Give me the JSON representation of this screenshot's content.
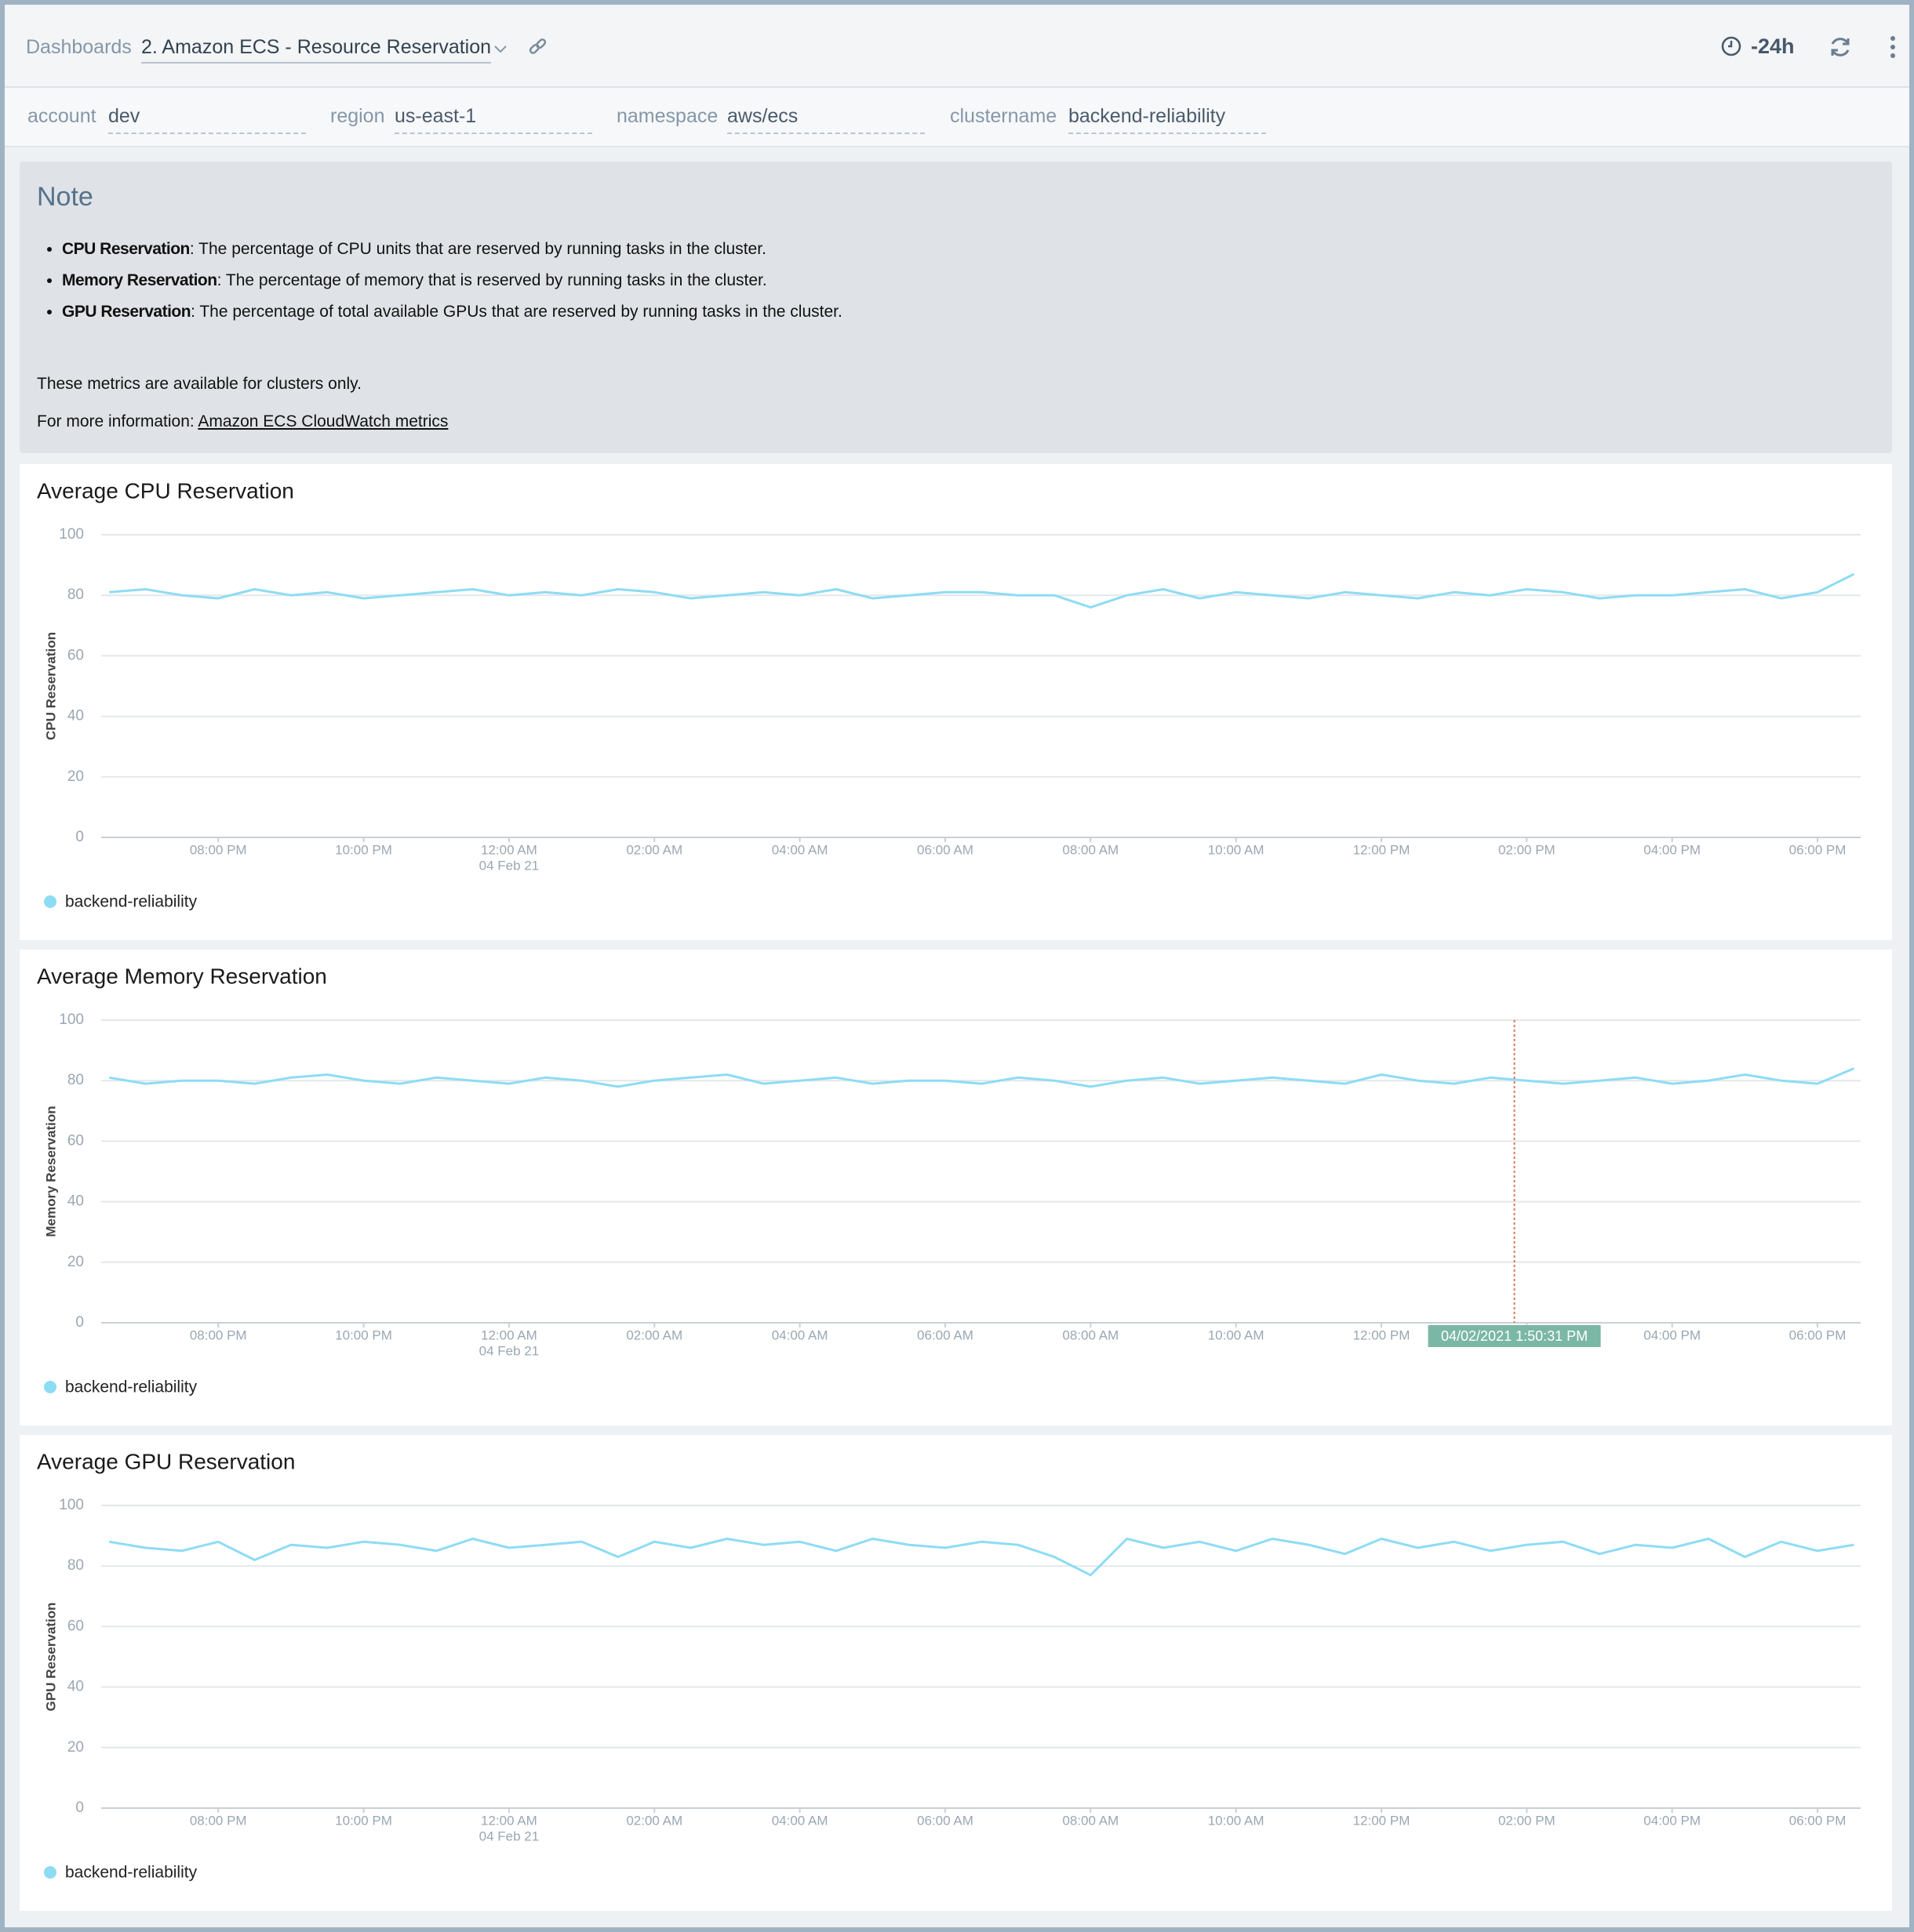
{
  "header": {
    "breadcrumb": "Dashboards",
    "dashboard": "2. Amazon ECS - Resource Reservation",
    "time_range": "-24h"
  },
  "filters": [
    {
      "label": "account",
      "value": "dev"
    },
    {
      "label": "region",
      "value": "us-east-1"
    },
    {
      "label": "namespace",
      "value": "aws/ecs"
    },
    {
      "label": "clustername",
      "value": "backend-reliability"
    }
  ],
  "note": {
    "title": "Note",
    "items": [
      {
        "term": "CPU Reservation",
        "text": ": The percentage of CPU units that are reserved by running tasks in the cluster."
      },
      {
        "term": "Memory Reservation",
        "text": ": The percentage of memory that is reserved by running tasks in the cluster."
      },
      {
        "term": "GPU Reservation",
        "text": ": The percentage of total available GPUs that are reserved by running tasks in the cluster."
      }
    ],
    "paragraph": "These metrics are available for clusters only.",
    "link_prefix": "For more information: ",
    "link_text": "Amazon ECS CloudWatch metrics"
  },
  "chart_data": [
    {
      "type": "line",
      "title": "Average CPU Reservation",
      "y_label": "CPU Reservation",
      "categories": [
        null,
        null,
        null,
        "08:00 PM",
        null,
        null,
        null,
        "10:00 PM",
        null,
        null,
        null,
        "12:00 AM",
        null,
        null,
        null,
        "02:00 AM",
        null,
        null,
        null,
        "04:00 AM",
        null,
        null,
        null,
        "06:00 AM",
        null,
        null,
        null,
        "08:00 AM",
        null,
        null,
        null,
        "10:00 AM",
        null,
        null,
        null,
        "12:00 PM",
        null,
        null,
        null,
        "02:00 PM",
        null,
        null,
        null,
        "04:00 PM",
        null,
        null,
        null,
        "06:00 PM",
        null
      ],
      "date_label": "04 Feb 21",
      "series": [
        {
          "name": "backend-reliability",
          "color": "#8ddcf4",
          "values": [
            81,
            82,
            80,
            79,
            82,
            80,
            81,
            79,
            80,
            81,
            82,
            80,
            81,
            80,
            82,
            81,
            79,
            80,
            81,
            80,
            82,
            79,
            80,
            81,
            81,
            80,
            80,
            76,
            80,
            82,
            79,
            81,
            80,
            79,
            81,
            80,
            79,
            81,
            80,
            82,
            81,
            79,
            80,
            80,
            81,
            82,
            79,
            81,
            87
          ]
        }
      ],
      "ylim": [
        0,
        100
      ],
      "yticks": [
        0,
        20,
        40,
        60,
        80,
        100
      ],
      "grid": true
    },
    {
      "type": "line",
      "title": "Average Memory Reservation",
      "y_label": "Memory Reservation",
      "categories": [
        null,
        null,
        null,
        "08:00 PM",
        null,
        null,
        null,
        "10:00 PM",
        null,
        null,
        null,
        "12:00 AM",
        null,
        null,
        null,
        "02:00 AM",
        null,
        null,
        null,
        "04:00 AM",
        null,
        null,
        null,
        "06:00 AM",
        null,
        null,
        null,
        "08:00 AM",
        null,
        null,
        null,
        "10:00 AM",
        null,
        null,
        null,
        "12:00 PM",
        null,
        null,
        null,
        "02:00 PM",
        null,
        null,
        null,
        "04:00 PM",
        null,
        null,
        null,
        "06:00 PM",
        null
      ],
      "date_label": "04 Feb 21",
      "series": [
        {
          "name": "backend-reliability",
          "color": "#8ddcf4",
          "values": [
            81,
            79,
            80,
            80,
            79,
            81,
            82,
            80,
            79,
            81,
            80,
            79,
            81,
            80,
            78,
            80,
            81,
            82,
            79,
            80,
            81,
            79,
            80,
            80,
            79,
            81,
            80,
            78,
            80,
            81,
            79,
            80,
            81,
            80,
            79,
            82,
            80,
            79,
            81,
            80,
            79,
            80,
            81,
            79,
            80,
            82,
            80,
            79,
            84
          ]
        }
      ],
      "ylim": [
        0,
        100
      ],
      "yticks": [
        0,
        20,
        40,
        60,
        80,
        100
      ],
      "grid": true,
      "cursor": {
        "label": "04/02/2021 1:50:31 PM"
      }
    },
    {
      "type": "line",
      "title": "Average GPU Reservation",
      "y_label": "GPU Reservation",
      "categories": [
        null,
        null,
        null,
        "08:00 PM",
        null,
        null,
        null,
        "10:00 PM",
        null,
        null,
        null,
        "12:00 AM",
        null,
        null,
        null,
        "02:00 AM",
        null,
        null,
        null,
        "04:00 AM",
        null,
        null,
        null,
        "06:00 AM",
        null,
        null,
        null,
        "08:00 AM",
        null,
        null,
        null,
        "10:00 AM",
        null,
        null,
        null,
        "12:00 PM",
        null,
        null,
        null,
        "02:00 PM",
        null,
        null,
        null,
        "04:00 PM",
        null,
        null,
        null,
        "06:00 PM",
        null
      ],
      "date_label": "04 Feb 21",
      "series": [
        {
          "name": "backend-reliability",
          "color": "#8ddcf4",
          "values": [
            88,
            86,
            85,
            88,
            82,
            87,
            86,
            88,
            87,
            85,
            89,
            86,
            87,
            88,
            83,
            88,
            86,
            89,
            87,
            88,
            85,
            89,
            87,
            86,
            88,
            87,
            83,
            77,
            89,
            86,
            88,
            85,
            89,
            87,
            84,
            89,
            86,
            88,
            85,
            87,
            88,
            84,
            87,
            86,
            89,
            83,
            88,
            85,
            87
          ]
        }
      ],
      "ylim": [
        0,
        100
      ],
      "yticks": [
        0,
        20,
        40,
        60,
        80,
        100
      ],
      "grid": true
    }
  ]
}
